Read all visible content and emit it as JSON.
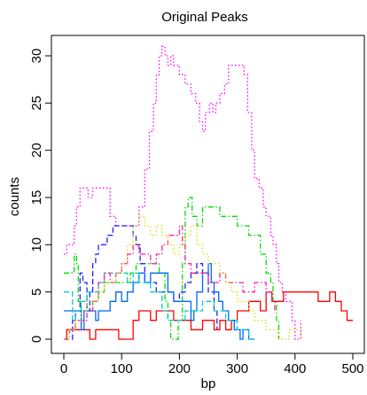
{
  "chart_data": {
    "type": "line",
    "title": "Original Peaks",
    "xlabel": "bp",
    "ylabel": "counts",
    "xlim": [
      0,
      500
    ],
    "ylim": [
      0,
      30
    ],
    "xticks": [
      "0",
      "100",
      "200",
      "300",
      "400",
      "500"
    ],
    "yticks": [
      "0",
      "5",
      "10",
      "15",
      "20",
      "25",
      "30"
    ],
    "grid": false,
    "legend": "none",
    "series": [
      {
        "color": "#ff00ff",
        "dash": "dotted",
        "points": [
          [
            0,
            9
          ],
          [
            5,
            10
          ],
          [
            12,
            10
          ],
          [
            18,
            12
          ],
          [
            22,
            14
          ],
          [
            28,
            16
          ],
          [
            36,
            16
          ],
          [
            42,
            15
          ],
          [
            50,
            16
          ],
          [
            60,
            16
          ],
          [
            72,
            16
          ],
          [
            80,
            13
          ],
          [
            90,
            12
          ],
          [
            100,
            12
          ],
          [
            110,
            12
          ],
          [
            120,
            12
          ],
          [
            130,
            14
          ],
          [
            140,
            18
          ],
          [
            148,
            22
          ],
          [
            155,
            25
          ],
          [
            160,
            28
          ],
          [
            165,
            30
          ],
          [
            170,
            31
          ],
          [
            175,
            30
          ],
          [
            180,
            29
          ],
          [
            185,
            30
          ],
          [
            190,
            29
          ],
          [
            200,
            28
          ],
          [
            210,
            27
          ],
          [
            220,
            26
          ],
          [
            228,
            25
          ],
          [
            235,
            23
          ],
          [
            240,
            22
          ],
          [
            245,
            24
          ],
          [
            252,
            25
          ],
          [
            258,
            24
          ],
          [
            263,
            25
          ],
          [
            270,
            26
          ],
          [
            278,
            27
          ],
          [
            285,
            29
          ],
          [
            295,
            29
          ],
          [
            305,
            29
          ],
          [
            312,
            28
          ],
          [
            318,
            24
          ],
          [
            325,
            20
          ],
          [
            330,
            17
          ],
          [
            338,
            16
          ],
          [
            345,
            14
          ],
          [
            350,
            13
          ],
          [
            358,
            11
          ],
          [
            362,
            10
          ],
          [
            368,
            8
          ],
          [
            372,
            6
          ],
          [
            378,
            5
          ],
          [
            384,
            4
          ],
          [
            390,
            4
          ],
          [
            395,
            2
          ],
          [
            400,
            0
          ],
          [
            405,
            0
          ],
          [
            410,
            2
          ]
        ]
      },
      {
        "color": "#00dd00",
        "dash": "dashdot",
        "points": [
          [
            0,
            7
          ],
          [
            10,
            7
          ],
          [
            18,
            9
          ],
          [
            22,
            8
          ],
          [
            25,
            4
          ],
          [
            30,
            3
          ],
          [
            40,
            3
          ],
          [
            50,
            4
          ],
          [
            60,
            5
          ],
          [
            70,
            6
          ],
          [
            80,
            6
          ],
          [
            95,
            6
          ],
          [
            105,
            6
          ],
          [
            115,
            7
          ],
          [
            125,
            8
          ],
          [
            135,
            8
          ],
          [
            145,
            8
          ],
          [
            155,
            8
          ],
          [
            165,
            7
          ],
          [
            175,
            4
          ],
          [
            180,
            2
          ],
          [
            185,
            0
          ],
          [
            192,
            0
          ],
          [
            198,
            2
          ],
          [
            205,
            8
          ],
          [
            210,
            14
          ],
          [
            215,
            15
          ],
          [
            222,
            13
          ],
          [
            230,
            12
          ],
          [
            240,
            14
          ],
          [
            250,
            14
          ],
          [
            260,
            14
          ],
          [
            270,
            13
          ],
          [
            280,
            13
          ],
          [
            290,
            13
          ],
          [
            300,
            12
          ],
          [
            310,
            12
          ],
          [
            320,
            11
          ],
          [
            330,
            11
          ],
          [
            340,
            9
          ],
          [
            350,
            7
          ],
          [
            358,
            6
          ],
          [
            362,
            4
          ],
          [
            368,
            2
          ],
          [
            372,
            0
          ]
        ]
      },
      {
        "color": "#2222ff",
        "dash": "dashed",
        "points": [
          [
            0,
            0
          ],
          [
            8,
            0
          ],
          [
            15,
            2
          ],
          [
            20,
            3
          ],
          [
            28,
            7
          ],
          [
            33,
            6
          ],
          [
            40,
            3
          ],
          [
            45,
            5
          ],
          [
            50,
            8
          ],
          [
            55,
            9
          ],
          [
            60,
            10
          ],
          [
            70,
            10
          ],
          [
            75,
            11
          ],
          [
            85,
            12
          ],
          [
            100,
            12
          ],
          [
            115,
            12
          ],
          [
            120,
            11
          ],
          [
            125,
            10
          ],
          [
            132,
            8
          ],
          [
            140,
            6
          ],
          [
            150,
            6
          ],
          [
            160,
            5
          ],
          [
            170,
            5
          ],
          [
            180,
            5
          ],
          [
            190,
            4
          ],
          [
            200,
            5
          ],
          [
            210,
            6
          ],
          [
            220,
            7
          ],
          [
            230,
            8
          ],
          [
            240,
            7
          ],
          [
            250,
            5
          ],
          [
            260,
            3
          ],
          [
            265,
            1
          ]
        ]
      },
      {
        "color": "#ff0000",
        "dash": "solid",
        "points": [
          [
            0,
            0
          ],
          [
            5,
            1
          ],
          [
            40,
            1
          ],
          [
            45,
            0
          ],
          [
            55,
            1
          ],
          [
            90,
            1
          ],
          [
            95,
            0
          ],
          [
            110,
            0
          ],
          [
            120,
            2
          ],
          [
            130,
            3
          ],
          [
            150,
            2
          ],
          [
            160,
            3
          ],
          [
            180,
            3
          ],
          [
            190,
            2
          ],
          [
            200,
            2
          ],
          [
            220,
            1
          ],
          [
            240,
            2
          ],
          [
            260,
            1
          ],
          [
            270,
            2
          ],
          [
            280,
            1
          ],
          [
            290,
            2
          ],
          [
            300,
            3
          ],
          [
            320,
            4
          ],
          [
            340,
            3
          ],
          [
            350,
            5
          ],
          [
            360,
            4
          ],
          [
            380,
            5
          ],
          [
            400,
            5
          ],
          [
            420,
            5
          ],
          [
            440,
            4
          ],
          [
            460,
            5
          ],
          [
            470,
            4
          ],
          [
            480,
            3
          ],
          [
            490,
            2
          ],
          [
            500,
            2
          ]
        ]
      },
      {
        "color": "#0066ff",
        "dash": "solid",
        "points": [
          [
            0,
            3
          ],
          [
            10,
            3
          ],
          [
            20,
            3
          ],
          [
            30,
            1
          ],
          [
            35,
            3
          ],
          [
            50,
            3
          ],
          [
            55,
            2
          ],
          [
            60,
            3
          ],
          [
            70,
            3
          ],
          [
            80,
            4
          ],
          [
            90,
            5
          ],
          [
            100,
            4
          ],
          [
            110,
            5
          ],
          [
            120,
            6
          ],
          [
            130,
            7
          ],
          [
            140,
            6
          ],
          [
            150,
            7
          ],
          [
            160,
            7
          ],
          [
            170,
            7
          ],
          [
            180,
            5
          ],
          [
            190,
            4
          ],
          [
            200,
            4
          ],
          [
            210,
            4
          ],
          [
            220,
            2
          ],
          [
            225,
            3
          ],
          [
            230,
            5
          ],
          [
            240,
            7
          ],
          [
            250,
            8
          ],
          [
            255,
            6
          ],
          [
            260,
            5
          ],
          [
            268,
            4
          ],
          [
            275,
            3
          ],
          [
            285,
            2
          ],
          [
            295,
            1
          ],
          [
            305,
            0
          ],
          [
            310,
            1
          ],
          [
            320,
            0
          ],
          [
            330,
            0
          ]
        ]
      },
      {
        "color": "#00cccc",
        "dash": "dashed",
        "points": [
          [
            0,
            5
          ],
          [
            10,
            5
          ],
          [
            15,
            2
          ],
          [
            20,
            3
          ],
          [
            30,
            4
          ],
          [
            40,
            5
          ],
          [
            50,
            5
          ],
          [
            60,
            6
          ],
          [
            70,
            7
          ],
          [
            80,
            7
          ],
          [
            90,
            7
          ],
          [
            100,
            7
          ],
          [
            110,
            6
          ],
          [
            120,
            7
          ],
          [
            130,
            6
          ],
          [
            140,
            6
          ],
          [
            150,
            5
          ],
          [
            160,
            5
          ],
          [
            170,
            3
          ],
          [
            180,
            2
          ],
          [
            190,
            2
          ],
          [
            200,
            2
          ],
          [
            210,
            3
          ],
          [
            220,
            3
          ],
          [
            230,
            3
          ],
          [
            240,
            4
          ],
          [
            250,
            4
          ],
          [
            260,
            3
          ],
          [
            270,
            3
          ],
          [
            280,
            2
          ],
          [
            290,
            2
          ],
          [
            300,
            1
          ],
          [
            310,
            1
          ],
          [
            320,
            0
          ],
          [
            330,
            0
          ]
        ]
      },
      {
        "color": "#ff2299",
        "dash": "dashdot",
        "points": [
          [
            0,
            0
          ],
          [
            10,
            1
          ],
          [
            20,
            2
          ],
          [
            30,
            2
          ],
          [
            40,
            3
          ],
          [
            50,
            4
          ],
          [
            60,
            6
          ],
          [
            70,
            7
          ],
          [
            80,
            6
          ],
          [
            90,
            7
          ],
          [
            100,
            8
          ],
          [
            110,
            9
          ],
          [
            120,
            10
          ],
          [
            130,
            9
          ],
          [
            140,
            9
          ],
          [
            150,
            8
          ],
          [
            160,
            9
          ],
          [
            170,
            10
          ],
          [
            180,
            11
          ],
          [
            190,
            11
          ],
          [
            200,
            12
          ],
          [
            205,
            10
          ],
          [
            210,
            8
          ],
          [
            220,
            7
          ],
          [
            230,
            7
          ],
          [
            240,
            7
          ],
          [
            250,
            6
          ],
          [
            260,
            6
          ],
          [
            270,
            7
          ],
          [
            280,
            6
          ],
          [
            290,
            6
          ],
          [
            300,
            6
          ],
          [
            310,
            5
          ],
          [
            320,
            5
          ],
          [
            330,
            6
          ],
          [
            340,
            6
          ],
          [
            350,
            5
          ],
          [
            360,
            4
          ],
          [
            365,
            3
          ]
        ]
      },
      {
        "color": "#dddd00",
        "dash": "dotted",
        "points": [
          [
            0,
            0
          ],
          [
            10,
            1
          ],
          [
            20,
            2
          ],
          [
            30,
            3
          ],
          [
            40,
            4
          ],
          [
            50,
            4
          ],
          [
            60,
            5
          ],
          [
            70,
            6
          ],
          [
            80,
            6
          ],
          [
            90,
            7
          ],
          [
            100,
            8
          ],
          [
            110,
            10
          ],
          [
            120,
            12
          ],
          [
            130,
            13
          ],
          [
            140,
            12
          ],
          [
            150,
            11
          ],
          [
            160,
            12
          ],
          [
            170,
            11
          ],
          [
            180,
            10
          ],
          [
            190,
            9
          ],
          [
            200,
            10
          ],
          [
            210,
            11
          ],
          [
            220,
            12
          ],
          [
            230,
            10
          ],
          [
            240,
            9
          ],
          [
            250,
            8
          ],
          [
            260,
            8
          ],
          [
            270,
            7
          ],
          [
            280,
            6
          ],
          [
            290,
            5
          ],
          [
            300,
            4
          ],
          [
            320,
            3
          ],
          [
            330,
            2
          ],
          [
            340,
            2
          ],
          [
            350,
            1
          ],
          [
            360,
            1
          ],
          [
            370,
            0
          ],
          [
            380,
            0
          ],
          [
            390,
            1
          ],
          [
            400,
            1
          ],
          [
            410,
            0
          ]
        ]
      }
    ]
  }
}
